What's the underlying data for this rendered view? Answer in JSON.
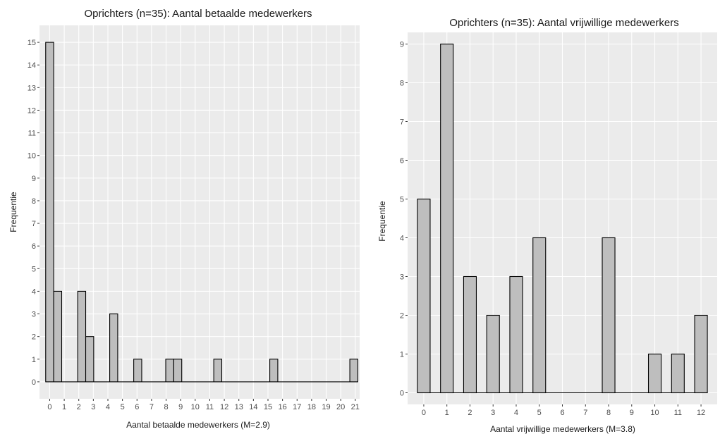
{
  "chart_data": [
    {
      "type": "bar",
      "title": "Oprichters (n=35): Aantal betaalde medewerkers",
      "xlabel": "Aantal betaalde medewerkers (M=2.9)",
      "ylabel": "Frequentie",
      "x_ticks": [
        0,
        1,
        2,
        3,
        4,
        5,
        6,
        7,
        8,
        9,
        10,
        11,
        12,
        13,
        14,
        15,
        16,
        17,
        18,
        19,
        20,
        21
      ],
      "y_ticks": [
        0,
        1,
        2,
        3,
        4,
        5,
        6,
        7,
        8,
        9,
        10,
        11,
        12,
        13,
        14,
        15
      ],
      "xlim": [
        -0.7,
        21.3
      ],
      "ylim": [
        -0.75,
        15.75
      ],
      "values": [
        15,
        4,
        0,
        4,
        2,
        0,
        3,
        0,
        0,
        1,
        0,
        0,
        0,
        1,
        1,
        0,
        0,
        0,
        0,
        1,
        0,
        0,
        0,
        0,
        0,
        0,
        1,
        0,
        0,
        0,
        0,
        0,
        0,
        0,
        0,
        0,
        1
      ],
      "x": [
        0,
        0.55,
        1.1,
        2.2,
        2.75,
        3.3,
        4.4,
        4.95,
        5.5,
        6.05,
        6.6,
        7.15,
        7.7,
        8.25,
        8.8,
        9.35,
        9.9,
        10.45,
        11.0,
        11.55,
        12.1,
        12.65,
        13.2,
        13.75,
        14.3,
        14.85,
        15.4,
        15.95,
        16.5,
        17.05,
        17.6,
        18.15,
        18.7,
        19.25,
        19.8,
        20.35,
        20.9
      ],
      "bar_width": 0.55,
      "grid": true
    },
    {
      "type": "bar",
      "title": "Oprichters (n=35): Aantal vrijwillige medewerkers",
      "xlabel": "Aantal vrijwillige medewerkers (M=3.8)",
      "ylabel": "Frequentie",
      "x_ticks": [
        0,
        1,
        2,
        3,
        4,
        5,
        6,
        7,
        8,
        9,
        10,
        11,
        12
      ],
      "y_ticks": [
        0,
        1,
        2,
        3,
        4,
        5,
        6,
        7,
        8,
        9
      ],
      "xlim": [
        -0.7,
        12.7
      ],
      "ylim": [
        -0.3,
        9.3
      ],
      "values": [
        5,
        9,
        0,
        3,
        2,
        0,
        3,
        4,
        0,
        0,
        0,
        0,
        4,
        0,
        0,
        0,
        1,
        0,
        1,
        2
      ],
      "x": [
        0,
        1,
        1.5,
        2,
        3,
        3.5,
        4,
        5,
        5.5,
        6,
        6.5,
        7,
        8,
        8.5,
        9,
        9.5,
        10,
        10.5,
        11,
        12
      ],
      "bar_width": 0.55,
      "grid": true
    }
  ]
}
